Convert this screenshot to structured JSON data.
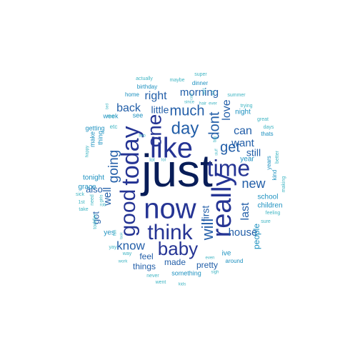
{
  "wordcloud": {
    "palette": {
      "darkest": "#081d58",
      "dark": "#253494",
      "mid": "#225ea8",
      "medium": "#1d91c0",
      "light": "#41b6c4"
    },
    "words": [
      {
        "text": "just",
        "color": "darkest"
      },
      {
        "text": "now",
        "color": "dark"
      },
      {
        "text": "like",
        "color": "dark"
      },
      {
        "text": "really",
        "color": "dark"
      },
      {
        "text": "today",
        "color": "dark"
      },
      {
        "text": "time",
        "color": "dark"
      },
      {
        "text": "think",
        "color": "dark"
      },
      {
        "text": "good",
        "color": "dark"
      },
      {
        "text": "baby",
        "color": "dark"
      },
      {
        "text": "one",
        "color": "dark"
      },
      {
        "text": "day",
        "color": "mid"
      },
      {
        "text": "will",
        "color": "mid"
      },
      {
        "text": "much",
        "color": "mid"
      },
      {
        "text": "get",
        "color": "mid"
      },
      {
        "text": "dont",
        "color": "mid"
      },
      {
        "text": "going",
        "color": "mid"
      },
      {
        "text": "new",
        "color": "mid"
      },
      {
        "text": "last",
        "color": "mid"
      },
      {
        "text": "house",
        "color": "mid"
      },
      {
        "text": "know",
        "color": "mid"
      },
      {
        "text": "morning",
        "color": "mid"
      },
      {
        "text": "right",
        "color": "mid"
      },
      {
        "text": "back",
        "color": "mid"
      },
      {
        "text": "can",
        "color": "mid"
      },
      {
        "text": "love",
        "color": "mid"
      },
      {
        "text": "want",
        "color": "mid"
      },
      {
        "text": "well",
        "color": "mid"
      },
      {
        "text": "first",
        "color": "mid"
      },
      {
        "text": "still",
        "color": "mid"
      },
      {
        "text": "little",
        "color": "mid"
      },
      {
        "text": "also",
        "color": "mid"
      },
      {
        "text": "got",
        "color": "mid"
      },
      {
        "text": "people",
        "color": "medium"
      },
      {
        "text": "pretty",
        "color": "mid"
      },
      {
        "text": "things",
        "color": "mid"
      },
      {
        "text": "made",
        "color": "mid"
      },
      {
        "text": "feel",
        "color": "mid"
      },
      {
        "text": "children",
        "color": "medium"
      },
      {
        "text": "school",
        "color": "medium"
      },
      {
        "text": "year",
        "color": "medium"
      },
      {
        "text": "night",
        "color": "medium"
      },
      {
        "text": "ive",
        "color": "medium"
      },
      {
        "text": "yes",
        "color": "medium"
      },
      {
        "text": "see",
        "color": "medium"
      },
      {
        "text": "week",
        "color": "medium"
      },
      {
        "text": "thing",
        "color": "medium"
      },
      {
        "text": "make",
        "color": "medium"
      },
      {
        "text": "tonight",
        "color": "medium"
      },
      {
        "text": "grace",
        "color": "medium"
      },
      {
        "text": "getting",
        "color": "medium"
      },
      {
        "text": "home",
        "color": "medium"
      },
      {
        "text": "birthday",
        "color": "medium"
      },
      {
        "text": "dinner",
        "color": "medium"
      },
      {
        "text": "something",
        "color": "medium"
      },
      {
        "text": "around",
        "color": "medium"
      },
      {
        "text": "years",
        "color": "medium"
      },
      {
        "text": "kind",
        "color": "medium"
      },
      {
        "text": "thats",
        "color": "medium"
      },
      {
        "text": "actually",
        "color": "light"
      },
      {
        "text": "maybe",
        "color": "light"
      },
      {
        "text": "super",
        "color": "light"
      },
      {
        "text": "summer",
        "color": "light"
      },
      {
        "text": "trying",
        "color": "light"
      },
      {
        "text": "great",
        "color": "light"
      },
      {
        "text": "days",
        "color": "light"
      },
      {
        "text": "better",
        "color": "light"
      },
      {
        "text": "making",
        "color": "light"
      },
      {
        "text": "feeling",
        "color": "light"
      },
      {
        "text": "sure",
        "color": "light"
      },
      {
        "text": "sigh",
        "color": "light"
      },
      {
        "text": "even",
        "color": "light"
      },
      {
        "text": "kids",
        "color": "light"
      },
      {
        "text": "went",
        "color": "light"
      },
      {
        "text": "never",
        "color": "light"
      },
      {
        "text": "work",
        "color": "light"
      },
      {
        "text": "way",
        "color": "light"
      },
      {
        "text": "yay",
        "color": "light"
      },
      {
        "text": "fun",
        "color": "light"
      },
      {
        "text": "toddler",
        "color": "light"
      },
      {
        "text": "need",
        "color": "light"
      },
      {
        "text": "1st",
        "color": "light"
      },
      {
        "text": "take",
        "color": "light"
      },
      {
        "text": "sick",
        "color": "light"
      },
      {
        "text": "happy",
        "color": "light"
      },
      {
        "text": "etc",
        "color": "light"
      },
      {
        "text": "food",
        "color": "light"
      },
      {
        "text": "bed",
        "color": "light"
      },
      {
        "text": "since",
        "color": "light"
      },
      {
        "text": "hair",
        "color": "light"
      },
      {
        "text": "ever",
        "color": "light"
      },
      {
        "text": "eat",
        "color": "light"
      },
      {
        "text": "put",
        "color": "light"
      },
      {
        "text": "cant",
        "color": "light"
      },
      {
        "text": "big",
        "color": "light"
      },
      {
        "text": "stuff",
        "color": "light"
      },
      {
        "text": "lol",
        "color": "light"
      },
      {
        "text": "lot",
        "color": "light"
      },
      {
        "text": "girls",
        "color": "light"
      },
      {
        "text": "rob",
        "color": "light"
      },
      {
        "text": "took",
        "color": "light"
      },
      {
        "text": "two",
        "color": "light"
      }
    ]
  }
}
